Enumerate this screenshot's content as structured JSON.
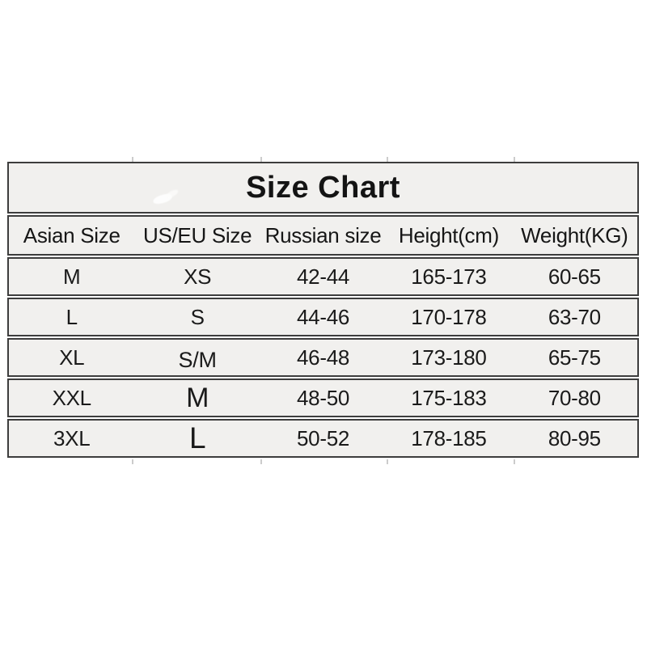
{
  "chart_data": {
    "type": "table",
    "title": "Size Chart",
    "columns": [
      "Asian Size",
      "US/EU Size",
      "Russian size",
      "Height(cm)",
      "Weight(KG)"
    ],
    "rows": [
      [
        "M",
        "XS",
        "42-44",
        "165-173",
        "60-65"
      ],
      [
        "L",
        "S",
        "44-46",
        "170-178",
        "63-70"
      ],
      [
        "XL",
        "S/M",
        "46-48",
        "173-180",
        "65-75"
      ],
      [
        "XXL",
        "M",
        "48-50",
        "175-183",
        "70-80"
      ],
      [
        "3XL",
        "L",
        "50-52",
        "178-185",
        "80-95"
      ]
    ],
    "layout_hints": {
      "grid": "horizontal band borders only, no vertical cell separators",
      "band_background": "#f1f0ee",
      "border_color": "#3d3d3d",
      "text_color": "#1a1a1a",
      "page_background": "#ffffff"
    }
  }
}
